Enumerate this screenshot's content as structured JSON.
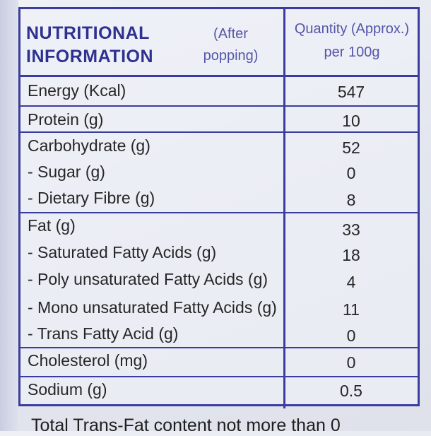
{
  "header": {
    "title": "NUTRITIONAL INFORMATION",
    "note": "(After popping)",
    "quantity": "Quantity (Approx.) per 100g"
  },
  "rows": [
    {
      "name": "Energy (Kcal)",
      "value": "547"
    },
    {
      "name": "Protein (g)",
      "value": "10"
    },
    {
      "name": "Carbohydrate (g)",
      "value": "52"
    },
    {
      "name": "- Sugar (g)",
      "value": "0"
    },
    {
      "name": "- Dietary Fibre (g)",
      "value": "8"
    },
    {
      "name": "Fat (g)",
      "value": "33"
    },
    {
      "name": "- Saturated Fatty Acids (g)",
      "value": "18"
    },
    {
      "name": "- Poly unsaturated Fatty Acids (g)",
      "value": "4"
    },
    {
      "name": "- Mono unsaturated Fatty Acids (g)",
      "value": "11"
    },
    {
      "name": "- Trans Fatty Acid (g)",
      "value": "0"
    },
    {
      "name": "Cholesterol (mg)",
      "value": "0"
    },
    {
      "name": "Sodium (g)",
      "value": "0.5"
    }
  ],
  "footer": "Total Trans-Fat content not more than 0"
}
